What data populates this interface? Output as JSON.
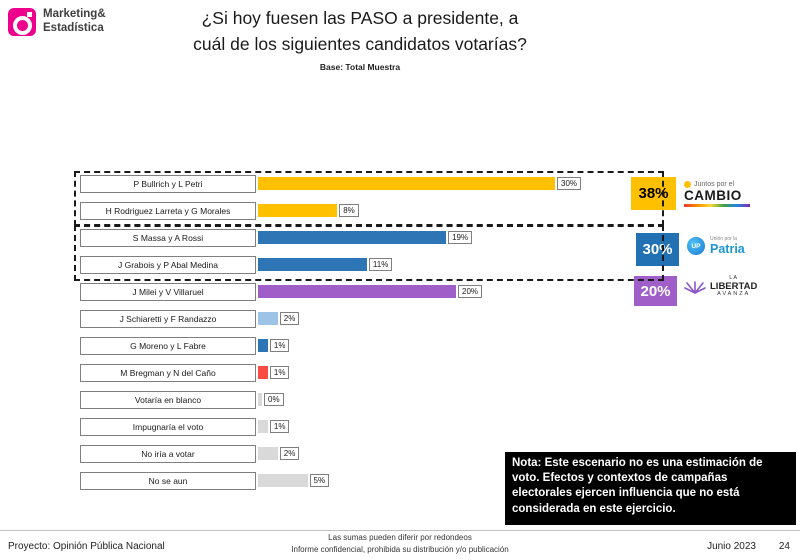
{
  "brand": {
    "name_line1": "Marketing&",
    "name_line2": "Estadística"
  },
  "title": {
    "line1": "¿Si hoy fuesen las PASO a presidente, a",
    "line2": "cuál de los siguientes candidatos votarías?",
    "subtitle": "Base: Total Muestra"
  },
  "chart_data": {
    "type": "bar",
    "orientation": "horizontal",
    "unit": "%",
    "xlim": [
      0,
      32
    ],
    "rows": [
      {
        "label": "P Bullrich y L Petri",
        "value": 30,
        "value_label": "30%",
        "color": "#FFC000",
        "group": "Juntos por el Cambio"
      },
      {
        "label": "H Rodriguez Larreta y G Morales",
        "value": 8,
        "value_label": "8%",
        "color": "#FFC000",
        "group": "Juntos por el Cambio"
      },
      {
        "label": "S Massa y A Rossi",
        "value": 19,
        "value_label": "19%",
        "color": "#2E75B6",
        "group": "Unión por la Patria"
      },
      {
        "label": "J Grabois y P Abal Medina",
        "value": 11,
        "value_label": "11%",
        "color": "#2E75B6",
        "group": "Unión por la Patria"
      },
      {
        "label": "J Milei y V Villaruel",
        "value": 20,
        "value_label": "20%",
        "color": "#A05EC8",
        "group": "La Libertad Avanza"
      },
      {
        "label": "J Schiaretti y F Randazzo",
        "value": 2,
        "value_label": "2%",
        "color": "#9DC3E6"
      },
      {
        "label": "G Moreno y L Fabre",
        "value": 1,
        "value_label": "1%",
        "color": "#2E75B6"
      },
      {
        "label": "M Bregman y N del Caño",
        "value": 1,
        "value_label": "1%",
        "color": "#F94C43"
      },
      {
        "label": "Votaría en blanco",
        "value": 0,
        "value_label": "0%",
        "color": "#D9D9D9"
      },
      {
        "label": "Impugnaría el voto",
        "value": 1,
        "value_label": "1%",
        "color": "#D9D9D9"
      },
      {
        "label": "No iría a votar",
        "value": 2,
        "value_label": "2%",
        "color": "#D9D9D9"
      },
      {
        "label": "No se aun",
        "value": 5,
        "value_label": "5%",
        "color": "#D9D9D9"
      }
    ],
    "groups": [
      {
        "name": "Juntos por el Cambio",
        "total_label": "38%",
        "color": "#FFC000",
        "text_color": "#000000"
      },
      {
        "name": "Unión por la Patria",
        "total_label": "30%",
        "color": "#2271B3",
        "text_color": "#FFFFFF"
      },
      {
        "name": "La Libertad Avanza",
        "total_label": "20%",
        "color": "#A05EC8",
        "text_color": "#FFFFFF"
      }
    ]
  },
  "logos": {
    "cambio": {
      "line1": "Juntos por el",
      "line2": "CAMBIO"
    },
    "patria": {
      "small": "Unión por la",
      "text": "Patria",
      "icon_text": "UP"
    },
    "libertad": {
      "line1": "LA",
      "line2": "LIBERTAD",
      "line3": "AVANZA"
    }
  },
  "note": {
    "text": "Nota: Este escenario no es una  estimación de voto. Efectos y contextos de campañas electorales ejercen influencia que no está considerada en este ejercicio."
  },
  "footer": {
    "left": "Proyecto: Opinión Pública Nacional",
    "center_line1": "Las sumas pueden diferir por redondeos",
    "center_line2": "Informe confidencial, prohibida su distribución y/o publicación",
    "date": "Junio 2023",
    "page": "24"
  }
}
